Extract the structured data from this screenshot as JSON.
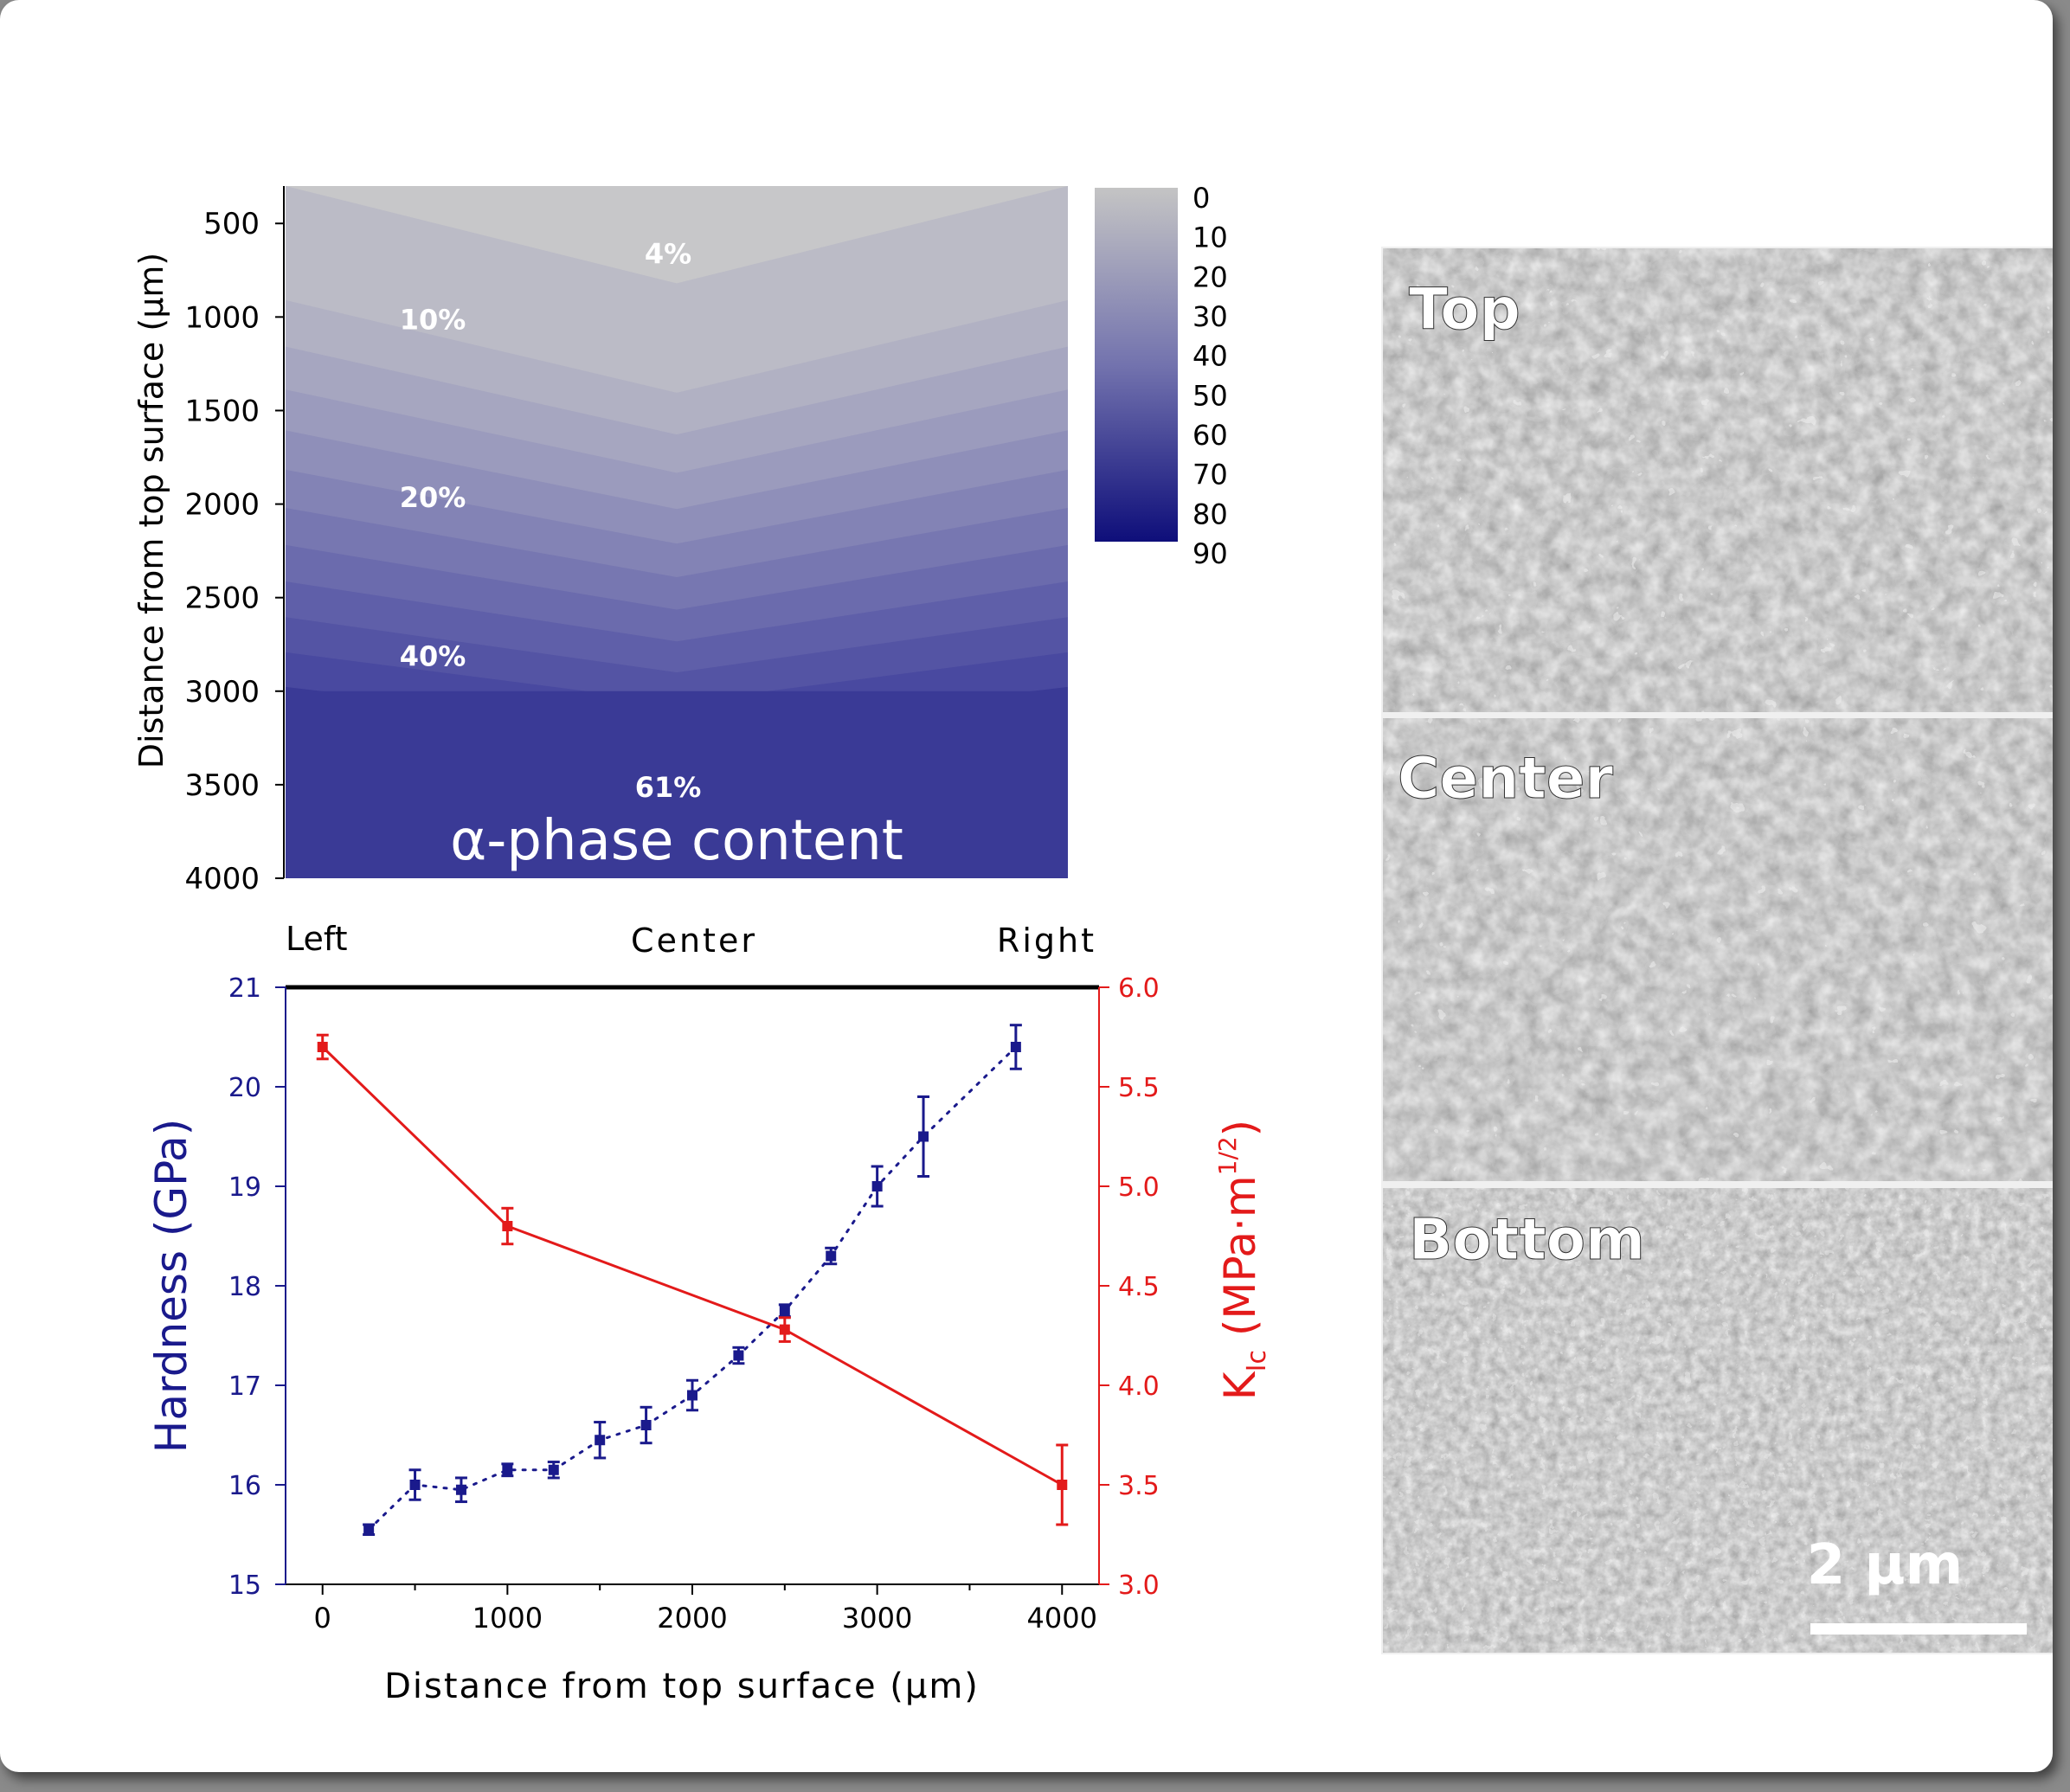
{
  "chart_data": [
    {
      "type": "heatmap",
      "title": "α-phase content",
      "ylabel": "Distance from top surface (μm)",
      "ylim": [
        300,
        4000
      ],
      "yticks": [
        500,
        1000,
        1500,
        2000,
        2500,
        3000,
        3500,
        4000
      ],
      "position_labels": [
        "Left",
        "Center",
        "Right"
      ],
      "colorbar": {
        "ticks": [
          0,
          10,
          20,
          30,
          40,
          50,
          60,
          70,
          80,
          90
        ],
        "low_color": "#c4c4c4",
        "high_color": "#0e0e7a"
      },
      "contour_labels": [
        {
          "text": "4%",
          "depth": 650,
          "pos": "center"
        },
        {
          "text": "10%",
          "depth": 1000,
          "pos": "left"
        },
        {
          "text": "20%",
          "depth": 1950,
          "pos": "left"
        },
        {
          "text": "40%",
          "depth": 2800,
          "pos": "left"
        },
        {
          "text": "61%",
          "depth": 3500,
          "pos": "center"
        }
      ],
      "bands": [
        {
          "value": 4,
          "color": "#c7c7c9"
        },
        {
          "value": 8,
          "color": "#bbbbc6"
        },
        {
          "value": 12,
          "color": "#b1b1c3"
        },
        {
          "value": 16,
          "color": "#a6a6c0"
        },
        {
          "value": 20,
          "color": "#9b9bbd"
        },
        {
          "value": 25,
          "color": "#8f8fb9"
        },
        {
          "value": 30,
          "color": "#8383b5"
        },
        {
          "value": 35,
          "color": "#7777b1"
        },
        {
          "value": 40,
          "color": "#6b6bad"
        },
        {
          "value": 45,
          "color": "#5f5fa9"
        },
        {
          "value": 50,
          "color": "#5454a4"
        },
        {
          "value": 55,
          "color": "#4949a0"
        },
        {
          "value": 61,
          "color": "#3a3a96"
        }
      ]
    },
    {
      "type": "line",
      "xlabel": "Distance from top surface (μm)",
      "xlim": [
        -200,
        4200
      ],
      "xticks": [
        0,
        1000,
        2000,
        3000,
        4000
      ],
      "y_left": {
        "label": "Hardness (GPa)",
        "lim": [
          15,
          21
        ],
        "ticks": [
          "15",
          "16",
          "17",
          "18",
          "19",
          "20",
          "21"
        ],
        "color": "#1a1a8c"
      },
      "y_right": {
        "label_main": "K",
        "label_sub": "Ic",
        "label_unit": " (MPa·m",
        "label_sup": "1/2",
        "label_close": ")",
        "lim": [
          3.0,
          6.0
        ],
        "ticks": [
          "3.0",
          "3.5",
          "4.0",
          "4.5",
          "5.0",
          "5.5",
          "6.0"
        ],
        "color": "#e31a1a"
      },
      "series": [
        {
          "axis": "left",
          "style": "dotted",
          "color": "#1a1a8c",
          "x": [
            250,
            500,
            750,
            1000,
            1250,
            1500,
            1750,
            2000,
            2250,
            2500,
            2750,
            3000,
            3250,
            3750
          ],
          "y": [
            15.55,
            16.0,
            15.95,
            16.15,
            16.15,
            16.45,
            16.6,
            16.9,
            17.3,
            17.75,
            18.3,
            19.0,
            19.5,
            20.4
          ],
          "err": [
            0.05,
            0.15,
            0.12,
            0.06,
            0.08,
            0.18,
            0.18,
            0.15,
            0.08,
            0.06,
            0.08,
            0.2,
            0.4,
            0.22
          ]
        },
        {
          "axis": "right",
          "style": "solid",
          "color": "#e31a1a",
          "x": [
            0,
            1000,
            2500,
            4000
          ],
          "y": [
            5.7,
            4.8,
            4.28,
            3.5
          ],
          "err": [
            0.06,
            0.09,
            0.06,
            0.2
          ]
        }
      ]
    }
  ],
  "micrographs": [
    {
      "label": "Top"
    },
    {
      "label": "Center"
    },
    {
      "label": "Bottom"
    }
  ],
  "scale_bar": "2 μm"
}
